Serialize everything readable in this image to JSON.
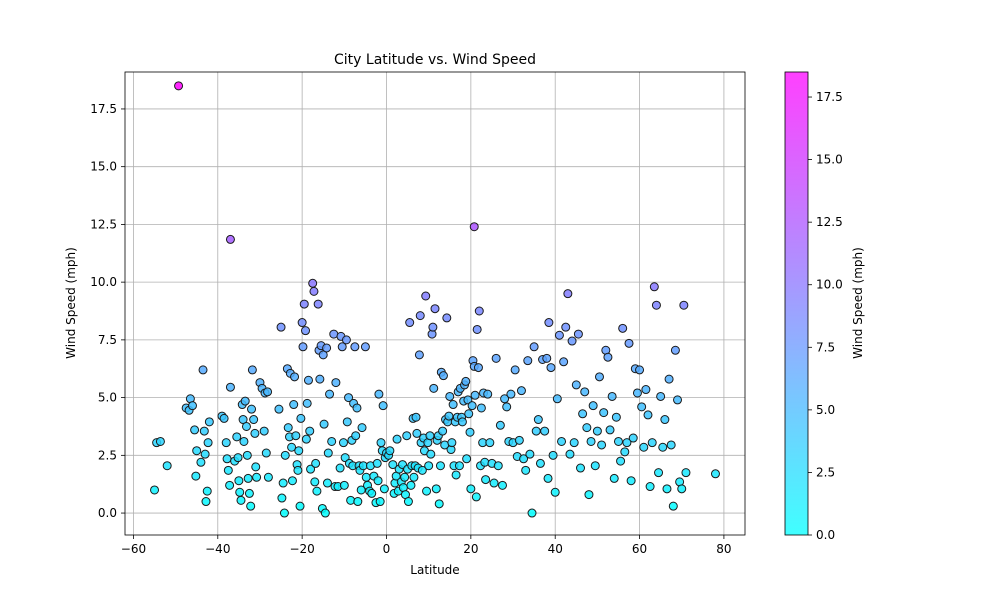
{
  "chart_data": {
    "type": "scatter",
    "title": "City Latitude vs. Wind Speed",
    "xlabel": "Latitude",
    "ylabel": "Wind Speed (mph)",
    "xlim": [
      -62,
      85
    ],
    "ylim": [
      -0.95,
      19.1
    ],
    "x_ticks": [
      -60,
      -40,
      -20,
      0,
      20,
      40,
      60,
      80
    ],
    "x_tick_labels": [
      "−60",
      "−40",
      "−20",
      "0",
      "20",
      "40",
      "60",
      "80"
    ],
    "y_ticks": [
      0,
      2.5,
      5,
      7.5,
      10,
      12.5,
      15,
      17.5
    ],
    "y_tick_labels": [
      "0.0",
      "2.5",
      "5.0",
      "7.5",
      "10.0",
      "12.5",
      "15.0",
      "17.5"
    ],
    "grid": true,
    "colorbar": {
      "label": "Wind Speed (mph)",
      "range": [
        0,
        18.5
      ],
      "ticks": [
        0,
        2.5,
        5,
        7.5,
        10,
        12.5,
        15,
        17.5
      ],
      "tick_labels": [
        "0.0",
        "2.5",
        "5.0",
        "7.5",
        "10.0",
        "12.5",
        "15.0",
        "17.5"
      ],
      "colormap": "cool",
      "color_low": "#00ffff",
      "color_high": "#ff00ff"
    },
    "points": [
      [
        -49.3,
        18.5
      ],
      [
        -37,
        11.85
      ],
      [
        20.8,
        12.4
      ],
      [
        -55,
        1
      ],
      [
        -54.5,
        3.05
      ],
      [
        -53.6,
        3.1
      ],
      [
        -52,
        2.05
      ],
      [
        -47.5,
        4.55
      ],
      [
        -46.8,
        4.45
      ],
      [
        -46.5,
        4.95
      ],
      [
        -46,
        4.65
      ],
      [
        -45.5,
        3.6
      ],
      [
        -45.2,
        1.6
      ],
      [
        -45,
        2.7
      ],
      [
        -44,
        2.2
      ],
      [
        -43.5,
        6.2
      ],
      [
        -43.2,
        3.55
      ],
      [
        -43,
        2.55
      ],
      [
        -42.8,
        0.5
      ],
      [
        -42.5,
        0.95
      ],
      [
        -42.3,
        3.05
      ],
      [
        -42,
        3.95
      ],
      [
        -39,
        4.2
      ],
      [
        -38.5,
        4.1
      ],
      [
        -38,
        3.05
      ],
      [
        -37.8,
        2.35
      ],
      [
        -37.5,
        1.85
      ],
      [
        -37.2,
        1.2
      ],
      [
        -37,
        5.45
      ],
      [
        -36,
        2.25
      ],
      [
        -35.5,
        3.3
      ],
      [
        -35.2,
        2.4
      ],
      [
        -35,
        1.4
      ],
      [
        -34.8,
        0.9
      ],
      [
        -34.5,
        0.55
      ],
      [
        -34.2,
        4.7
      ],
      [
        -34,
        4.05
      ],
      [
        -33.8,
        3.1
      ],
      [
        -33.5,
        4.85
      ],
      [
        -33.2,
        3.75
      ],
      [
        -33,
        2.5
      ],
      [
        -32.8,
        1.5
      ],
      [
        -32.5,
        0.85
      ],
      [
        -32.2,
        0.3
      ],
      [
        -32,
        4.5
      ],
      [
        -31.8,
        6.2
      ],
      [
        -31.5,
        4.05
      ],
      [
        -31.2,
        3.45
      ],
      [
        -31,
        2
      ],
      [
        -30.8,
        1.55
      ],
      [
        -30,
        5.65
      ],
      [
        -29.5,
        5.4
      ],
      [
        -29,
        3.55
      ],
      [
        -28.8,
        5.2
      ],
      [
        -28.5,
        2.6
      ],
      [
        -28.2,
        5.25
      ],
      [
        -28,
        1.55
      ],
      [
        -25.5,
        4.5
      ],
      [
        -25,
        8.05
      ],
      [
        -24.8,
        0.65
      ],
      [
        -24.5,
        1.3
      ],
      [
        -24.2,
        0
      ],
      [
        -24,
        2.5
      ],
      [
        -23.5,
        6.25
      ],
      [
        -23.3,
        3.7
      ],
      [
        -23,
        3.3
      ],
      [
        -22.8,
        6.05
      ],
      [
        -22.5,
        2.85
      ],
      [
        -22.3,
        1.4
      ],
      [
        -22,
        4.7
      ],
      [
        -21.8,
        5.9
      ],
      [
        -21.5,
        3.35
      ],
      [
        -21.2,
        2.1
      ],
      [
        -21,
        1.85
      ],
      [
        -20.8,
        2.7
      ],
      [
        -20.5,
        0.3
      ],
      [
        -20.3,
        4.1
      ],
      [
        -20,
        8.25
      ],
      [
        -19.8,
        7.2
      ],
      [
        -19.5,
        9.05
      ],
      [
        -19.2,
        7.9
      ],
      [
        -19,
        3.2
      ],
      [
        -18.8,
        4.75
      ],
      [
        -18.5,
        5.75
      ],
      [
        -18.2,
        3.55
      ],
      [
        -18,
        1.9
      ],
      [
        -17.5,
        9.95
      ],
      [
        -17.2,
        9.6
      ],
      [
        -17,
        1.35
      ],
      [
        -16.8,
        2.15
      ],
      [
        -16.5,
        0.95
      ],
      [
        -16.2,
        9.05
      ],
      [
        -16,
        7.05
      ],
      [
        -15.8,
        5.8
      ],
      [
        -15.5,
        7.25
      ],
      [
        -15.2,
        0.2
      ],
      [
        -15,
        6.85
      ],
      [
        -14.8,
        3.85
      ],
      [
        -14.5,
        0
      ],
      [
        -14.2,
        7.15
      ],
      [
        -14,
        1.3
      ],
      [
        -13.8,
        2.6
      ],
      [
        -13.5,
        5.15
      ],
      [
        -13,
        3.1
      ],
      [
        -12.5,
        7.75
      ],
      [
        -12.2,
        1.15
      ],
      [
        -12,
        5.65
      ],
      [
        -11.5,
        1.15
      ],
      [
        -11,
        1.95
      ],
      [
        -10.8,
        7.65
      ],
      [
        -10.5,
        7.2
      ],
      [
        -10.2,
        3.05
      ],
      [
        -10,
        1.2
      ],
      [
        -9.8,
        2.4
      ],
      [
        -9.5,
        7.5
      ],
      [
        -9.3,
        3.95
      ],
      [
        -9,
        5
      ],
      [
        -8.8,
        2.15
      ],
      [
        -8.5,
        0.55
      ],
      [
        -8.2,
        3.15
      ],
      [
        -8,
        2.05
      ],
      [
        -7.8,
        4.75
      ],
      [
        -7.5,
        7.2
      ],
      [
        -7.3,
        3.35
      ],
      [
        -7,
        4.55
      ],
      [
        -6.8,
        0.5
      ],
      [
        -6.5,
        2.05
      ],
      [
        -6.3,
        1.85
      ],
      [
        -6,
        1
      ],
      [
        -5.8,
        3.7
      ],
      [
        -5.5,
        2.05
      ],
      [
        -5,
        7.2
      ],
      [
        -4.8,
        1.55
      ],
      [
        -4.5,
        1.2
      ],
      [
        -4,
        0.95
      ],
      [
        -3.8,
        2.05
      ],
      [
        -3.5,
        0.85
      ],
      [
        -3,
        1.6
      ],
      [
        -2.5,
        0.45
      ],
      [
        -2.2,
        2.15
      ],
      [
        -2,
        1.4
      ],
      [
        -1.8,
        5.15
      ],
      [
        -1.5,
        0.5
      ],
      [
        -1.3,
        3.05
      ],
      [
        -1,
        2.7
      ],
      [
        -0.8,
        4.65
      ],
      [
        -0.5,
        1.05
      ],
      [
        -0.3,
        2.4
      ],
      [
        0,
        2.6
      ],
      [
        0.5,
        2.5
      ],
      [
        0.8,
        2.7
      ],
      [
        1.5,
        2.1
      ],
      [
        1.8,
        0.85
      ],
      [
        2,
        1.3
      ],
      [
        2.3,
        1.6
      ],
      [
        2.5,
        3.2
      ],
      [
        2.8,
        0.95
      ],
      [
        3,
        1.9
      ],
      [
        3.5,
        1.35
      ],
      [
        3.8,
        2.1
      ],
      [
        4,
        1.1
      ],
      [
        4.3,
        1.55
      ],
      [
        4.5,
        0.8
      ],
      [
        4.8,
        3.35
      ],
      [
        5,
        1.9
      ],
      [
        5.2,
        0.5
      ],
      [
        5.5,
        8.25
      ],
      [
        5.8,
        1.2
      ],
      [
        6,
        2.05
      ],
      [
        6.3,
        4.1
      ],
      [
        6.5,
        1.55
      ],
      [
        6.8,
        2.05
      ],
      [
        7,
        4.15
      ],
      [
        7.2,
        3.45
      ],
      [
        7.5,
        1.95
      ],
      [
        7.8,
        6.85
      ],
      [
        8,
        8.55
      ],
      [
        8.2,
        3.05
      ],
      [
        8.5,
        1.85
      ],
      [
        8.8,
        3.25
      ],
      [
        9,
        2.7
      ],
      [
        9.3,
        9.4
      ],
      [
        9.5,
        0.95
      ],
      [
        9.8,
        3.05
      ],
      [
        10,
        2.05
      ],
      [
        10.3,
        3.35
      ],
      [
        10.5,
        2.55
      ],
      [
        10.8,
        7.75
      ],
      [
        11,
        8.05
      ],
      [
        11.2,
        5.4
      ],
      [
        11.5,
        8.85
      ],
      [
        11.8,
        1.05
      ],
      [
        12,
        3.15
      ],
      [
        12.3,
        3.35
      ],
      [
        12.5,
        0.4
      ],
      [
        12.8,
        2.05
      ],
      [
        13,
        6.1
      ],
      [
        13.3,
        3.55
      ],
      [
        13.5,
        5.95
      ],
      [
        13.8,
        2.95
      ],
      [
        14,
        4.05
      ],
      [
        14.3,
        8.45
      ],
      [
        14.5,
        3.95
      ],
      [
        14.8,
        4.2
      ],
      [
        15,
        5.05
      ],
      [
        15.3,
        2.75
      ],
      [
        15.5,
        3.05
      ],
      [
        15.8,
        4.7
      ],
      [
        16,
        2.05
      ],
      [
        16.3,
        3.95
      ],
      [
        16.5,
        1.65
      ],
      [
        16.8,
        4.15
      ],
      [
        17,
        5.25
      ],
      [
        17.3,
        2.05
      ],
      [
        17.5,
        5.4
      ],
      [
        17.8,
        4.15
      ],
      [
        18,
        3.95
      ],
      [
        18.3,
        4.85
      ],
      [
        18.5,
        5.55
      ],
      [
        18.8,
        5.7
      ],
      [
        19,
        2.35
      ],
      [
        19.3,
        4.9
      ],
      [
        19.5,
        4.3
      ],
      [
        19.8,
        3.5
      ],
      [
        20,
        1.05
      ],
      [
        20.3,
        4.65
      ],
      [
        20.5,
        6.6
      ],
      [
        20.8,
        6.35
      ],
      [
        21,
        5.1
      ],
      [
        21.3,
        0.7
      ],
      [
        21.5,
        7.95
      ],
      [
        21.8,
        6.3
      ],
      [
        22,
        8.75
      ],
      [
        22.3,
        2.05
      ],
      [
        22.5,
        4.55
      ],
      [
        22.8,
        3.05
      ],
      [
        23,
        5.2
      ],
      [
        23.3,
        2.2
      ],
      [
        23.5,
        1.45
      ],
      [
        24,
        5.15
      ],
      [
        24.5,
        3.05
      ],
      [
        25,
        2.15
      ],
      [
        25.5,
        1.3
      ],
      [
        26,
        6.7
      ],
      [
        26.5,
        2.05
      ],
      [
        27,
        3.8
      ],
      [
        27.5,
        1.2
      ],
      [
        28,
        4.95
      ],
      [
        28.5,
        4.6
      ],
      [
        29,
        3.1
      ],
      [
        29.5,
        5.15
      ],
      [
        30,
        3.05
      ],
      [
        30.5,
        6.2
      ],
      [
        31,
        2.45
      ],
      [
        31.5,
        3.15
      ],
      [
        32,
        5.3
      ],
      [
        32.5,
        2.35
      ],
      [
        33,
        1.85
      ],
      [
        33.5,
        6.6
      ],
      [
        34,
        2.55
      ],
      [
        34.5,
        0
      ],
      [
        35,
        7.2
      ],
      [
        35.5,
        3.55
      ],
      [
        36,
        4.05
      ],
      [
        36.5,
        2.15
      ],
      [
        37,
        6.65
      ],
      [
        37.5,
        3.55
      ],
      [
        38,
        6.7
      ],
      [
        38.3,
        1.5
      ],
      [
        38.5,
        8.25
      ],
      [
        39,
        6.3
      ],
      [
        39.5,
        2.5
      ],
      [
        40,
        0.9
      ],
      [
        40.5,
        4.95
      ],
      [
        41,
        7.7
      ],
      [
        41.5,
        3.1
      ],
      [
        42,
        6.55
      ],
      [
        42.5,
        8.05
      ],
      [
        43,
        9.5
      ],
      [
        43.5,
        2.55
      ],
      [
        44,
        7.45
      ],
      [
        44.5,
        3.05
      ],
      [
        45,
        5.55
      ],
      [
        45.5,
        7.75
      ],
      [
        46,
        1.95
      ],
      [
        46.5,
        4.3
      ],
      [
        47,
        5.25
      ],
      [
        47.5,
        3.7
      ],
      [
        48,
        0.8
      ],
      [
        48.5,
        3.1
      ],
      [
        49,
        4.65
      ],
      [
        49.5,
        2.05
      ],
      [
        50,
        3.55
      ],
      [
        50.5,
        5.9
      ],
      [
        51,
        2.95
      ],
      [
        51.5,
        4.35
      ],
      [
        52,
        7.05
      ],
      [
        52.5,
        6.75
      ],
      [
        53,
        3.6
      ],
      [
        53.5,
        5.05
      ],
      [
        54,
        1.5
      ],
      [
        54.5,
        4.15
      ],
      [
        55,
        3.1
      ],
      [
        55.5,
        2.25
      ],
      [
        56,
        8
      ],
      [
        56.5,
        2.65
      ],
      [
        57,
        3.05
      ],
      [
        57.5,
        7.35
      ],
      [
        58,
        1.4
      ],
      [
        58.5,
        3.25
      ],
      [
        59,
        6.25
      ],
      [
        59.5,
        5.2
      ],
      [
        60,
        6.2
      ],
      [
        60.5,
        4.6
      ],
      [
        61,
        2.85
      ],
      [
        61.5,
        5.35
      ],
      [
        62,
        4.25
      ],
      [
        62.5,
        1.15
      ],
      [
        63,
        3.05
      ],
      [
        63.5,
        9.8
      ],
      [
        64,
        9
      ],
      [
        64.5,
        1.75
      ],
      [
        65,
        5.05
      ],
      [
        65.5,
        2.85
      ],
      [
        66,
        4.05
      ],
      [
        66.5,
        1.05
      ],
      [
        67,
        5.8
      ],
      [
        67.5,
        2.95
      ],
      [
        68,
        0.3
      ],
      [
        68.5,
        7.05
      ],
      [
        69,
        4.9
      ],
      [
        69.5,
        1.35
      ],
      [
        70,
        1.05
      ],
      [
        70.5,
        9
      ],
      [
        71,
        1.75
      ],
      [
        78,
        1.7
      ]
    ]
  }
}
